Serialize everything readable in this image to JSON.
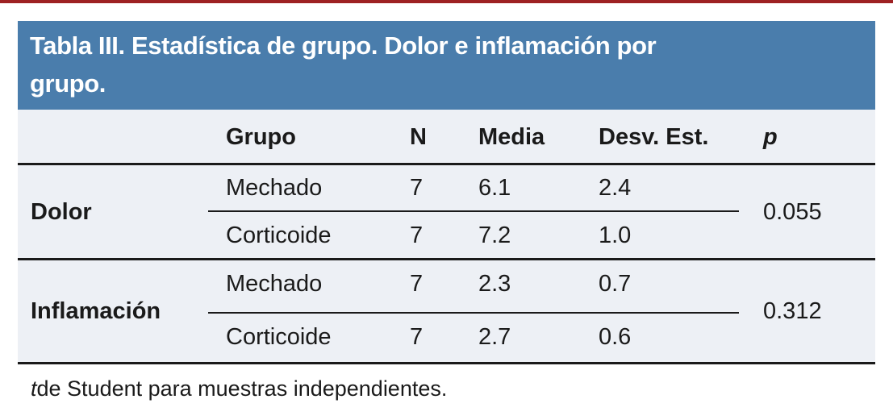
{
  "colors": {
    "top_rule": "#9e2123",
    "band_background": "#4a7dac",
    "table_background": "#edf0f5",
    "text": "#1a1a1a"
  },
  "title": {
    "line1": "Tabla III. Estadística de grupo. Dolor e inflamación por",
    "line2": "grupo."
  },
  "table": {
    "columns": [
      "",
      "Grupo",
      "N",
      "Media",
      "Desv. Est.",
      "p"
    ],
    "blocks": [
      {
        "label": "Dolor",
        "p": "0.055",
        "rows": [
          {
            "grupo": "Mechado",
            "n": "7",
            "media": "6.1",
            "desv": "2.4"
          },
          {
            "grupo": "Corticoide",
            "n": "7",
            "media": "7.2",
            "desv": "1.0"
          }
        ]
      },
      {
        "label": "Inflamación",
        "p": "0.312",
        "rows": [
          {
            "grupo": "Mechado",
            "n": "7",
            "media": "2.3",
            "desv": "0.7"
          },
          {
            "grupo": "Corticoide",
            "n": "7",
            "media": "2.7",
            "desv": "0.6"
          }
        ]
      }
    ],
    "footnote_prefix": "t",
    "footnote_rest": " de Student para muestras independientes."
  }
}
